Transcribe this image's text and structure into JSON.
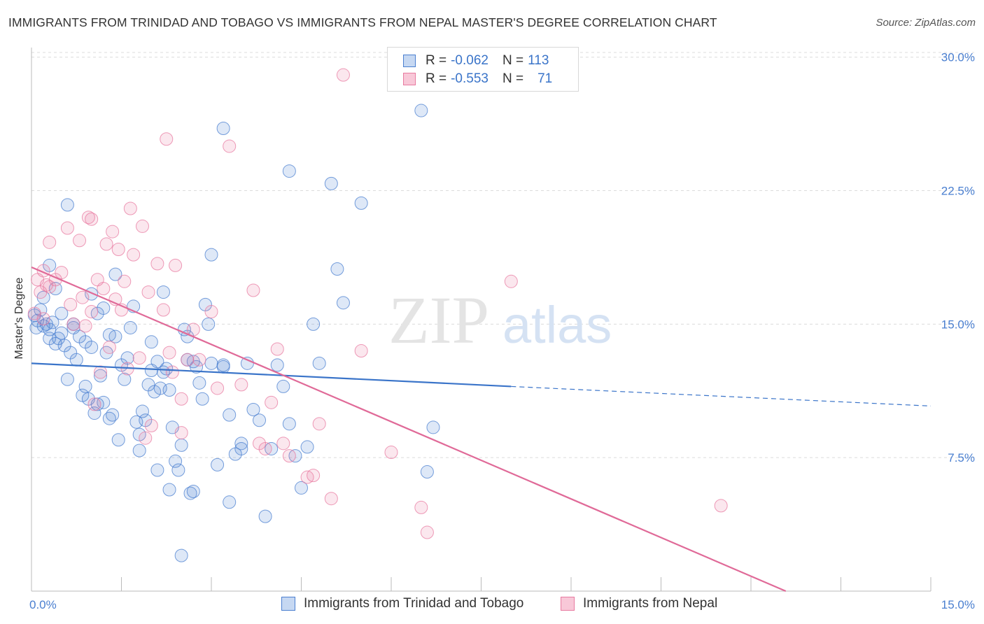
{
  "title": "IMMIGRANTS FROM TRINIDAD AND TOBAGO VS IMMIGRANTS FROM NEPAL MASTER'S DEGREE CORRELATION CHART",
  "source": "Source: ZipAtlas.com",
  "watermark": {
    "zip": "ZIP",
    "atlas": "atlas"
  },
  "legend": {
    "rows": [
      {
        "r_label": "R =",
        "r_value": "-0.062",
        "n_label": "N =",
        "n_value": "113",
        "color": "#4a7fd0"
      },
      {
        "r_label": "R =",
        "r_value": "-0.553",
        "n_label": "N =",
        "n_value": "71",
        "color": "#e87aa0"
      }
    ]
  },
  "bottom_legend": [
    {
      "label": "Immigrants from Trinidad and Tobago",
      "color": "#4a7fd0"
    },
    {
      "label": "Immigrants from Nepal",
      "color": "#e87aa0"
    }
  ],
  "chart_data": {
    "type": "scatter",
    "ylabel": "Master's Degree",
    "xlim": [
      0,
      15
    ],
    "ylim": [
      0,
      30.5
    ],
    "x_tick_labels": [
      {
        "value": 0,
        "label": "0.0%"
      },
      {
        "value": 15,
        "label": "15.0%"
      }
    ],
    "x_minor_ticks": [
      0,
      1.5,
      3,
      4.5,
      6,
      7.5,
      9,
      10.5,
      12,
      13.5,
      15
    ],
    "y_ticks": [
      {
        "value": 7.5,
        "label": "7.5%"
      },
      {
        "value": 15,
        "label": "15.0%"
      },
      {
        "value": 22.5,
        "label": "22.5%"
      },
      {
        "value": 30,
        "label": "30.0%"
      }
    ],
    "grid": "horizontal dashed",
    "legend_placement": "top-center",
    "series": [
      {
        "name": "Immigrants from Trinidad and Tobago",
        "color": "#4a7fd0",
        "trend": {
          "x0": 0,
          "y0": 12.8,
          "x1": 8.0,
          "y1": 11.5,
          "dash_x1": 15,
          "dash_y1": 10.4
        },
        "points": [
          [
            0.05,
            15.5
          ],
          [
            0.08,
            14.8
          ],
          [
            0.1,
            15.2
          ],
          [
            0.15,
            15.8
          ],
          [
            0.2,
            14.9
          ],
          [
            0.25,
            15.0
          ],
          [
            0.3,
            14.7
          ],
          [
            0.35,
            15.1
          ],
          [
            0.4,
            13.9
          ],
          [
            0.45,
            14.2
          ],
          [
            0.5,
            15.6
          ],
          [
            0.55,
            13.8
          ],
          [
            0.6,
            11.9
          ],
          [
            0.65,
            13.4
          ],
          [
            0.7,
            15.0
          ],
          [
            0.75,
            13.0
          ],
          [
            0.8,
            14.3
          ],
          [
            0.85,
            11.0
          ],
          [
            0.9,
            11.5
          ],
          [
            0.95,
            10.8
          ],
          [
            1.0,
            13.7
          ],
          [
            1.05,
            10.0
          ],
          [
            1.1,
            10.5
          ],
          [
            1.15,
            12.1
          ],
          [
            1.2,
            10.6
          ],
          [
            1.25,
            13.4
          ],
          [
            1.3,
            9.7
          ],
          [
            1.35,
            9.9
          ],
          [
            1.4,
            14.3
          ],
          [
            1.45,
            8.5
          ],
          [
            1.5,
            12.7
          ],
          [
            1.55,
            11.9
          ],
          [
            1.6,
            13.1
          ],
          [
            1.65,
            14.8
          ],
          [
            1.7,
            16.0
          ],
          [
            1.75,
            9.5
          ],
          [
            1.8,
            8.8
          ],
          [
            1.85,
            10.1
          ],
          [
            1.9,
            9.6
          ],
          [
            1.95,
            11.6
          ],
          [
            2.0,
            12.4
          ],
          [
            2.05,
            11.2
          ],
          [
            2.1,
            12.9
          ],
          [
            2.15,
            11.4
          ],
          [
            2.2,
            16.8
          ],
          [
            2.25,
            12.5
          ],
          [
            2.3,
            11.3
          ],
          [
            2.35,
            9.2
          ],
          [
            2.4,
            7.3
          ],
          [
            2.45,
            6.8
          ],
          [
            2.5,
            8.2
          ],
          [
            2.55,
            14.7
          ],
          [
            2.6,
            13.0
          ],
          [
            2.65,
            5.5
          ],
          [
            2.7,
            12.9
          ],
          [
            2.75,
            12.6
          ],
          [
            2.8,
            11.7
          ],
          [
            2.85,
            10.8
          ],
          [
            2.9,
            16.1
          ],
          [
            2.95,
            15.0
          ],
          [
            3.0,
            12.8
          ],
          [
            3.1,
            7.1
          ],
          [
            3.2,
            12.7
          ],
          [
            3.3,
            9.9
          ],
          [
            3.4,
            7.7
          ],
          [
            3.5,
            8.3
          ],
          [
            3.6,
            12.8
          ],
          [
            3.7,
            10.2
          ],
          [
            3.8,
            9.6
          ],
          [
            3.9,
            4.2
          ],
          [
            4.0,
            8.0
          ],
          [
            4.1,
            12.7
          ],
          [
            4.2,
            11.5
          ],
          [
            4.3,
            9.4
          ],
          [
            4.4,
            7.6
          ],
          [
            4.5,
            5.8
          ],
          [
            4.6,
            8.1
          ],
          [
            4.7,
            15.0
          ],
          [
            4.8,
            12.8
          ],
          [
            5.0,
            22.9
          ],
          [
            5.1,
            18.1
          ],
          [
            5.2,
            16.2
          ],
          [
            5.5,
            21.8
          ],
          [
            6.5,
            27.0
          ],
          [
            6.7,
            9.2
          ],
          [
            6.6,
            6.7
          ],
          [
            4.3,
            23.6
          ],
          [
            3.2,
            26.0
          ],
          [
            0.6,
            21.7
          ],
          [
            0.3,
            18.3
          ],
          [
            0.2,
            16.5
          ],
          [
            0.4,
            17.0
          ],
          [
            1.0,
            16.7
          ],
          [
            1.4,
            17.8
          ],
          [
            0.3,
            14.2
          ],
          [
            0.5,
            14.5
          ],
          [
            0.7,
            14.8
          ],
          [
            0.9,
            14.0
          ],
          [
            1.1,
            15.6
          ],
          [
            1.2,
            15.9
          ],
          [
            1.3,
            14.4
          ],
          [
            2.0,
            14.0
          ],
          [
            2.2,
            12.3
          ],
          [
            2.6,
            14.3
          ],
          [
            2.3,
            5.7
          ],
          [
            2.5,
            2.0
          ],
          [
            3.3,
            5.0
          ],
          [
            2.1,
            6.8
          ],
          [
            1.8,
            7.9
          ],
          [
            3.0,
            18.9
          ],
          [
            3.5,
            8.0
          ],
          [
            2.7,
            5.6
          ],
          [
            3.2,
            12.6
          ]
        ]
      },
      {
        "name": "Immigrants from Nepal",
        "color": "#e87aa0",
        "trend": {
          "x0": 0,
          "y0": 18.2,
          "x1": 15,
          "y1": -3.5
        },
        "points": [
          [
            0.05,
            15.6
          ],
          [
            0.1,
            17.5
          ],
          [
            0.15,
            16.8
          ],
          [
            0.2,
            18.0
          ],
          [
            0.25,
            17.2
          ],
          [
            0.3,
            19.6
          ],
          [
            0.4,
            17.5
          ],
          [
            0.5,
            17.9
          ],
          [
            0.6,
            20.4
          ],
          [
            0.65,
            16.1
          ],
          [
            0.7,
            15.0
          ],
          [
            0.8,
            19.7
          ],
          [
            0.85,
            16.5
          ],
          [
            0.9,
            14.9
          ],
          [
            0.95,
            21.0
          ],
          [
            1.0,
            20.9
          ],
          [
            1.05,
            10.5
          ],
          [
            1.1,
            17.5
          ],
          [
            1.15,
            12.3
          ],
          [
            1.2,
            17.0
          ],
          [
            1.25,
            19.5
          ],
          [
            1.3,
            13.7
          ],
          [
            1.35,
            20.2
          ],
          [
            1.4,
            16.4
          ],
          [
            1.45,
            19.2
          ],
          [
            1.5,
            15.8
          ],
          [
            1.55,
            17.4
          ],
          [
            1.6,
            12.5
          ],
          [
            1.65,
            21.5
          ],
          [
            1.7,
            18.9
          ],
          [
            1.8,
            13.1
          ],
          [
            1.85,
            20.5
          ],
          [
            1.9,
            8.6
          ],
          [
            1.95,
            16.8
          ],
          [
            2.0,
            9.3
          ],
          [
            2.1,
            18.4
          ],
          [
            2.2,
            15.8
          ],
          [
            2.25,
            25.4
          ],
          [
            2.3,
            13.4
          ],
          [
            2.35,
            12.3
          ],
          [
            2.4,
            18.3
          ],
          [
            2.5,
            10.8
          ],
          [
            2.6,
            13.0
          ],
          [
            2.7,
            14.7
          ],
          [
            2.8,
            13.0
          ],
          [
            3.0,
            15.7
          ],
          [
            3.1,
            11.4
          ],
          [
            3.3,
            25.0
          ],
          [
            3.5,
            11.6
          ],
          [
            3.7,
            16.9
          ],
          [
            3.8,
            8.3
          ],
          [
            3.9,
            8.0
          ],
          [
            4.0,
            10.6
          ],
          [
            4.1,
            13.6
          ],
          [
            4.2,
            8.3
          ],
          [
            4.3,
            7.6
          ],
          [
            4.6,
            6.4
          ],
          [
            4.7,
            6.5
          ],
          [
            4.8,
            9.4
          ],
          [
            5.0,
            5.2
          ],
          [
            5.5,
            13.5
          ],
          [
            6.0,
            7.8
          ],
          [
            6.5,
            4.7
          ],
          [
            6.6,
            3.3
          ],
          [
            8.0,
            17.4
          ],
          [
            11.5,
            4.8
          ],
          [
            5.2,
            29.0
          ],
          [
            1.0,
            15.7
          ],
          [
            0.3,
            17.1
          ],
          [
            0.2,
            15.3
          ],
          [
            2.5,
            8.9
          ]
        ]
      }
    ]
  }
}
